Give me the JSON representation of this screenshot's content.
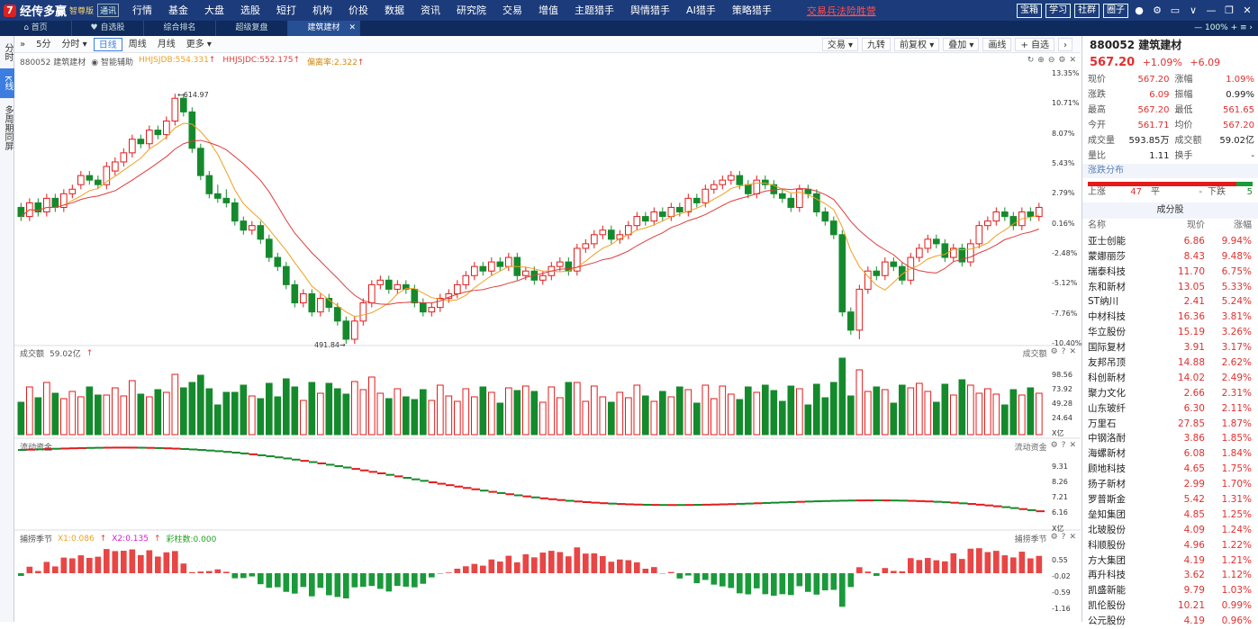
{
  "app": {
    "logo_mark": "7",
    "name": "经传多赢",
    "edition": "智尊版",
    "mode": "通讯"
  },
  "menu": [
    "行情",
    "基金",
    "大盘",
    "选股",
    "短打",
    "机构",
    "价投",
    "数据",
    "资讯",
    "研究院",
    "交易",
    "增值",
    "主题猎手",
    "舆情猎手",
    "AI猎手",
    "策略猎手"
  ],
  "warning_link": "交易兵法险胜营",
  "top_buttons": [
    "宝箱",
    "学习",
    "社群",
    "圈子"
  ],
  "top_icons": [
    "user-icon",
    "gear-icon",
    "window-icon",
    "chevron-down-icon",
    "minimize-icon",
    "restore-icon",
    "close-icon"
  ],
  "tabs": [
    {
      "label": "首页",
      "icon": "home-icon"
    },
    {
      "label": "自选股",
      "icon": "heart-icon"
    },
    {
      "label": "综合排名"
    },
    {
      "label": "超级复盘"
    },
    {
      "label": "建筑建材",
      "active": true
    }
  ],
  "zoom": "100%",
  "sidebar": [
    "分时",
    "K线",
    "多周期同屏"
  ],
  "period_buttons": [
    "5分",
    "分时",
    "日线",
    "周线",
    "月线",
    "更多"
  ],
  "active_period": "日线",
  "chart_tools": [
    "交易",
    "九转",
    "前复权",
    "叠加",
    "画线",
    "自选"
  ],
  "stock_label": "880052 建筑建材",
  "smart_assist": "智能辅助",
  "legend_main": [
    {
      "text": "HHJSJDB:554.331",
      "color": "#f0a020"
    },
    {
      "text": "HHJSJDC:552.175",
      "color": "#e03c3c"
    },
    {
      "text": "偏离率:2.322",
      "color": "#d08a10"
    }
  ],
  "price_axis": [
    "13.35%",
    "10.71%",
    "8.07%",
    "5.43%",
    "2.79%",
    "0.16%",
    "-2.48%",
    "-5.12%",
    "-7.76%",
    "-10.40%"
  ],
  "high_mark": "614.97",
  "low_mark": "491.84",
  "volume": {
    "title": "成交额",
    "value": "59.02亿",
    "right_title": "成交额",
    "axis": [
      "98.56",
      "73.92",
      "49.28",
      "24.64",
      "X亿"
    ]
  },
  "capital": {
    "title": "流动资金",
    "right_title": "流动资金",
    "axis": [
      "9.31",
      "8.26",
      "7.21",
      "6.16",
      "X亿"
    ]
  },
  "season": {
    "title": "捕捞季节",
    "x1": "X1:0.086",
    "x2": "X2:0.135",
    "bar": "彩柱数:0.000",
    "right_title": "捕捞季节",
    "axis": [
      "0.55",
      "-0.02",
      "-0.59",
      "-1.16"
    ]
  },
  "quote": {
    "code_name": "880052 建筑建材",
    "price": "567.20",
    "change_pct": "+1.09%",
    "change": "+6.09",
    "rows": [
      {
        "k": "现价",
        "v": "567.20",
        "k2": "涨幅",
        "v2": "1.09%"
      },
      {
        "k": "涨跌",
        "v": "6.09",
        "k2": "振幅",
        "v2": "0.99%",
        "v2black": true
      },
      {
        "k": "最高",
        "v": "567.20",
        "k2": "最低",
        "v2": "561.65"
      },
      {
        "k": "今开",
        "v": "561.71",
        "k2": "均价",
        "v2": "567.20"
      },
      {
        "k": "成交量",
        "v": "593.85万",
        "k2": "成交额",
        "v2": "59.02亿",
        "vblack": true,
        "v2black": true
      },
      {
        "k": "量比",
        "v": "1.11",
        "k2": "换手",
        "v2": "-",
        "vblack": true,
        "v2black": true
      }
    ]
  },
  "distribution": {
    "title": "涨跌分布",
    "up_label": "上涨",
    "up": "47",
    "flat_label": "平",
    "flat": "-",
    "down_label": "下跌",
    "down": "5",
    "up_count": 47,
    "down_count": 5
  },
  "components_title": "成分股",
  "components_header": {
    "name": "名称",
    "price": "现价",
    "change": "涨幅"
  },
  "components": [
    {
      "name": "亚士创能",
      "price": "6.86",
      "change": "9.94%"
    },
    {
      "name": "蒙娜丽莎",
      "price": "8.43",
      "change": "9.48%"
    },
    {
      "name": "瑞泰科技",
      "price": "11.70",
      "change": "6.75%"
    },
    {
      "name": "东和新材",
      "price": "13.05",
      "change": "5.33%"
    },
    {
      "name": "ST纳川",
      "price": "2.41",
      "change": "5.24%"
    },
    {
      "name": "中材科技",
      "price": "16.36",
      "change": "3.81%"
    },
    {
      "name": "华立股份",
      "price": "15.19",
      "change": "3.26%"
    },
    {
      "name": "国际复材",
      "price": "3.91",
      "change": "3.17%"
    },
    {
      "name": "友邦吊顶",
      "price": "14.88",
      "change": "2.62%"
    },
    {
      "name": "科创新材",
      "price": "14.02",
      "change": "2.49%"
    },
    {
      "name": "聚力文化",
      "price": "2.66",
      "change": "2.31%"
    },
    {
      "name": "山东玻纤",
      "price": "6.30",
      "change": "2.11%"
    },
    {
      "name": "万里石",
      "price": "27.85",
      "change": "1.87%"
    },
    {
      "name": "中钢洛耐",
      "price": "3.86",
      "change": "1.85%"
    },
    {
      "name": "海螺新材",
      "price": "6.08",
      "change": "1.84%"
    },
    {
      "name": "顾地科技",
      "price": "4.65",
      "change": "1.75%"
    },
    {
      "name": "扬子新材",
      "price": "2.99",
      "change": "1.70%"
    },
    {
      "name": "罗普斯金",
      "price": "5.42",
      "change": "1.31%"
    },
    {
      "name": "垒知集团",
      "price": "4.85",
      "change": "1.25%"
    },
    {
      "name": "北玻股份",
      "price": "4.09",
      "change": "1.24%"
    },
    {
      "name": "科顺股份",
      "price": "4.96",
      "change": "1.22%"
    },
    {
      "name": "方大集团",
      "price": "4.19",
      "change": "1.21%"
    },
    {
      "name": "再升科技",
      "price": "3.62",
      "change": "1.12%"
    },
    {
      "name": "凯盛新能",
      "price": "9.79",
      "change": "1.03%"
    },
    {
      "name": "凯伦股份",
      "price": "10.21",
      "change": "0.99%"
    },
    {
      "name": "公元股份",
      "price": "4.19",
      "change": "0.96%"
    }
  ],
  "colors": {
    "up": "#e31b1b",
    "down": "#158a2c",
    "ma_short": "#f0a020",
    "ma_long": "#e03c3c",
    "accent": "#3d7de0",
    "topbar": "#1c3b7a"
  },
  "candles_pct": [
    [
      3,
      1,
      4,
      0
    ],
    [
      1,
      4,
      5,
      0
    ],
    [
      4,
      2,
      5,
      1
    ],
    [
      2,
      5,
      6,
      1
    ],
    [
      5,
      3,
      6,
      2
    ],
    [
      3,
      6,
      7,
      2
    ],
    [
      6,
      7,
      8,
      5
    ],
    [
      8,
      10,
      11,
      7
    ],
    [
      10,
      9,
      11,
      8
    ],
    [
      9,
      8,
      10,
      7
    ],
    [
      8,
      12,
      13,
      7
    ],
    [
      11,
      13,
      14,
      10
    ],
    [
      13,
      15,
      16,
      12
    ],
    [
      15,
      18,
      19,
      14
    ],
    [
      18,
      17,
      19,
      16
    ],
    [
      17,
      20,
      21,
      16
    ],
    [
      20,
      19,
      21,
      18
    ],
    [
      19,
      22,
      23,
      18
    ],
    [
      22,
      27,
      28,
      21
    ],
    [
      27,
      24,
      28,
      23
    ],
    [
      24,
      16,
      25,
      15
    ],
    [
      16,
      10,
      17,
      9
    ],
    [
      10,
      6,
      11,
      5
    ],
    [
      6,
      5,
      8,
      4
    ],
    [
      5,
      4,
      7,
      3
    ],
    [
      4,
      0,
      5,
      -1
    ],
    [
      0,
      -2,
      1,
      -3
    ],
    [
      -2,
      -1,
      0,
      -3
    ],
    [
      -1,
      -4,
      0,
      -5
    ],
    [
      -4,
      -8,
      -3,
      -9
    ],
    [
      -8,
      -10,
      -7,
      -11
    ],
    [
      -10,
      -14,
      -9,
      -15
    ],
    [
      -14,
      -18,
      -13,
      -19
    ],
    [
      -18,
      -16,
      -15,
      -19
    ],
    [
      -16,
      -20,
      -15,
      -21
    ],
    [
      -20,
      -17,
      -16,
      -21
    ],
    [
      -17,
      -19,
      -16,
      -20
    ],
    [
      -19,
      -22,
      -18,
      -23
    ],
    [
      -22,
      -26,
      -21,
      -27
    ],
    [
      -26,
      -22,
      -21,
      -27
    ],
    [
      -22,
      -18,
      -17,
      -23
    ],
    [
      -18,
      -14,
      -13,
      -19
    ],
    [
      -14,
      -13,
      -12,
      -15
    ],
    [
      -13,
      -15,
      -12,
      -16
    ],
    [
      -15,
      -14,
      -13,
      -16
    ],
    [
      -14,
      -15,
      -13,
      -16
    ],
    [
      -15,
      -18,
      -14,
      -19
    ],
    [
      -18,
      -20,
      -17,
      -21
    ],
    [
      -20,
      -19,
      -18,
      -21
    ],
    [
      -19,
      -17,
      -16,
      -20
    ],
    [
      -17,
      -16,
      -15,
      -18
    ],
    [
      -16,
      -14,
      -13,
      -17
    ],
    [
      -14,
      -12,
      -11,
      -15
    ],
    [
      -12,
      -10,
      -9,
      -13
    ],
    [
      -10,
      -11,
      -9,
      -12
    ],
    [
      -11,
      -9,
      -8,
      -12
    ],
    [
      -9,
      -10,
      -8,
      -11
    ],
    [
      -10,
      -8,
      -7,
      -11
    ],
    [
      -8,
      -12,
      -7,
      -13
    ],
    [
      -12,
      -11,
      -10,
      -13
    ],
    [
      -11,
      -13,
      -10,
      -14
    ],
    [
      -13,
      -12,
      -11,
      -14
    ],
    [
      -12,
      -10,
      -9,
      -13
    ],
    [
      -10,
      -9,
      -8,
      -11
    ],
    [
      -9,
      -11,
      -8,
      -12
    ],
    [
      -11,
      -6,
      -5,
      -12
    ],
    [
      -6,
      -5,
      -4,
      -7
    ],
    [
      -5,
      -3,
      -2,
      -6
    ],
    [
      -3,
      -2,
      -1,
      -4
    ],
    [
      -2,
      -4,
      -1,
      -5
    ],
    [
      -4,
      -3,
      -2,
      -5
    ],
    [
      -3,
      -1,
      0,
      -4
    ],
    [
      -1,
      1,
      2,
      -2
    ],
    [
      1,
      0,
      2,
      -1
    ],
    [
      0,
      2,
      3,
      -1
    ],
    [
      2,
      1,
      3,
      0
    ],
    [
      1,
      3,
      4,
      0
    ],
    [
      3,
      2,
      4,
      1
    ],
    [
      2,
      5,
      6,
      1
    ],
    [
      5,
      4,
      6,
      3
    ],
    [
      4,
      7,
      8,
      3
    ],
    [
      7,
      8,
      9,
      6
    ],
    [
      8,
      9,
      10,
      7
    ],
    [
      9,
      10,
      11,
      8
    ],
    [
      10,
      8,
      11,
      7
    ],
    [
      8,
      6,
      9,
      5
    ],
    [
      6,
      9,
      10,
      5
    ],
    [
      9,
      8,
      10,
      7
    ],
    [
      8,
      6,
      9,
      5
    ],
    [
      6,
      5,
      7,
      4
    ],
    [
      5,
      3,
      6,
      2
    ],
    [
      3,
      7,
      8,
      2
    ],
    [
      7,
      6,
      8,
      5
    ],
    [
      6,
      2,
      7,
      1
    ],
    [
      2,
      0,
      3,
      -1
    ],
    [
      0,
      -3,
      1,
      -4
    ],
    [
      -3,
      -20,
      -2,
      -21
    ],
    [
      -20,
      -24,
      -19,
      -25
    ],
    [
      -24,
      -15,
      -14,
      -26
    ],
    [
      -15,
      -11,
      -10,
      -16
    ],
    [
      -11,
      -12,
      -10,
      -13
    ],
    [
      -12,
      -9,
      -8,
      -13
    ],
    [
      -9,
      -10,
      -8,
      -11
    ],
    [
      -10,
      -13,
      -9,
      -14
    ],
    [
      -13,
      -8,
      -7,
      -14
    ],
    [
      -8,
      -6,
      -5,
      -9
    ],
    [
      -6,
      -4,
      -3,
      -7
    ],
    [
      -4,
      -5,
      -3,
      -6
    ],
    [
      -5,
      -8,
      -4,
      -9
    ],
    [
      -8,
      -6,
      -5,
      -9
    ],
    [
      -6,
      -9,
      -5,
      -10
    ],
    [
      -9,
      -5,
      -4,
      -10
    ],
    [
      -5,
      -1,
      0,
      -6
    ],
    [
      -1,
      0,
      1,
      -2
    ],
    [
      0,
      2,
      3,
      -1
    ],
    [
      2,
      1,
      3,
      0
    ],
    [
      1,
      -1,
      2,
      -2
    ],
    [
      -1,
      2,
      3,
      -2
    ],
    [
      2,
      1,
      3,
      0
    ],
    [
      1,
      3,
      4,
      0
    ]
  ]
}
